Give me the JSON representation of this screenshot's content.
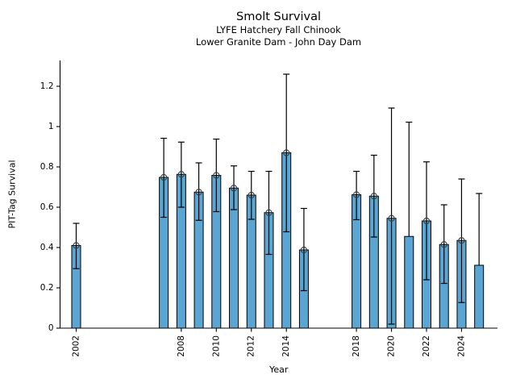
{
  "header": {
    "title": "Smolt Survival",
    "subtitle1": "LYFE Hatchery Fall Chinook",
    "subtitle2": "Lower Granite Dam - John Day Dam"
  },
  "chart_data": {
    "type": "bar",
    "title": "Smolt Survival",
    "subtitle": [
      "LYFE Hatchery Fall Chinook",
      "Lower Granite Dam - John Day Dam"
    ],
    "xlabel": "Year",
    "ylabel": "PIT-Tag Survival",
    "grid": false,
    "legend": null,
    "xlim": [
      2001.08,
      2026.05
    ],
    "ylim": [
      0,
      1.328
    ],
    "x_ticks": [
      2002,
      2008,
      2010,
      2012,
      2014,
      2018,
      2020,
      2022,
      2024
    ],
    "x_tick_labels": [
      "2002",
      "2008",
      "2010",
      "2012",
      "2014",
      "2018",
      "2020",
      "2022",
      "2024"
    ],
    "y_ticks": [
      0,
      0.2,
      0.4,
      0.6,
      0.8,
      1.0,
      1.2
    ],
    "y_tick_labels": [
      "0",
      "0.2",
      "0.4",
      "0.6",
      "0.8",
      "1",
      "1.2"
    ],
    "bar_color": "#5aa5d1",
    "bar_edge_color": "#000000",
    "error_color": "#000000",
    "marker_style": "open-circle",
    "marker_color": "#3a3a3a",
    "series": [
      {
        "year": 2002,
        "value": 0.41,
        "ci_low": 0.295,
        "ci_high": 0.52,
        "marker": true
      },
      {
        "year": 2007,
        "value": 0.748,
        "ci_low": 0.55,
        "ci_high": 0.942,
        "marker": true
      },
      {
        "year": 2008,
        "value": 0.763,
        "ci_low": 0.6,
        "ci_high": 0.923,
        "marker": true
      },
      {
        "year": 2009,
        "value": 0.675,
        "ci_low": 0.535,
        "ci_high": 0.82,
        "marker": true
      },
      {
        "year": 2010,
        "value": 0.758,
        "ci_low": 0.578,
        "ci_high": 0.938,
        "marker": true
      },
      {
        "year": 2011,
        "value": 0.695,
        "ci_low": 0.588,
        "ci_high": 0.805,
        "marker": true
      },
      {
        "year": 2012,
        "value": 0.66,
        "ci_low": 0.54,
        "ci_high": 0.778,
        "marker": true
      },
      {
        "year": 2013,
        "value": 0.573,
        "ci_low": 0.366,
        "ci_high": 0.778,
        "marker": true
      },
      {
        "year": 2014,
        "value": 0.87,
        "ci_low": 0.478,
        "ci_high": 1.26,
        "marker": true
      },
      {
        "year": 2015,
        "value": 0.388,
        "ci_low": 0.186,
        "ci_high": 0.594,
        "marker": true
      },
      {
        "year": 2018,
        "value": 0.662,
        "ci_low": 0.538,
        "ci_high": 0.778,
        "marker": true
      },
      {
        "year": 2019,
        "value": 0.655,
        "ci_low": 0.452,
        "ci_high": 0.858,
        "marker": true
      },
      {
        "year": 2020,
        "value": 0.545,
        "ci_low": 0.02,
        "ci_high": 1.092,
        "marker": true
      },
      {
        "year": 2021,
        "value": 0.455,
        "ci_low": null,
        "ci_high": 1.022,
        "marker": false
      },
      {
        "year": 2022,
        "value": 0.532,
        "ci_low": 0.24,
        "ci_high": 0.825,
        "marker": true
      },
      {
        "year": 2023,
        "value": 0.415,
        "ci_low": 0.222,
        "ci_high": 0.612,
        "marker": true
      },
      {
        "year": 2024,
        "value": 0.435,
        "ci_low": 0.127,
        "ci_high": 0.74,
        "marker": true
      },
      {
        "year": 2025,
        "value": 0.312,
        "ci_low": null,
        "ci_high": 0.668,
        "marker": false
      }
    ]
  }
}
